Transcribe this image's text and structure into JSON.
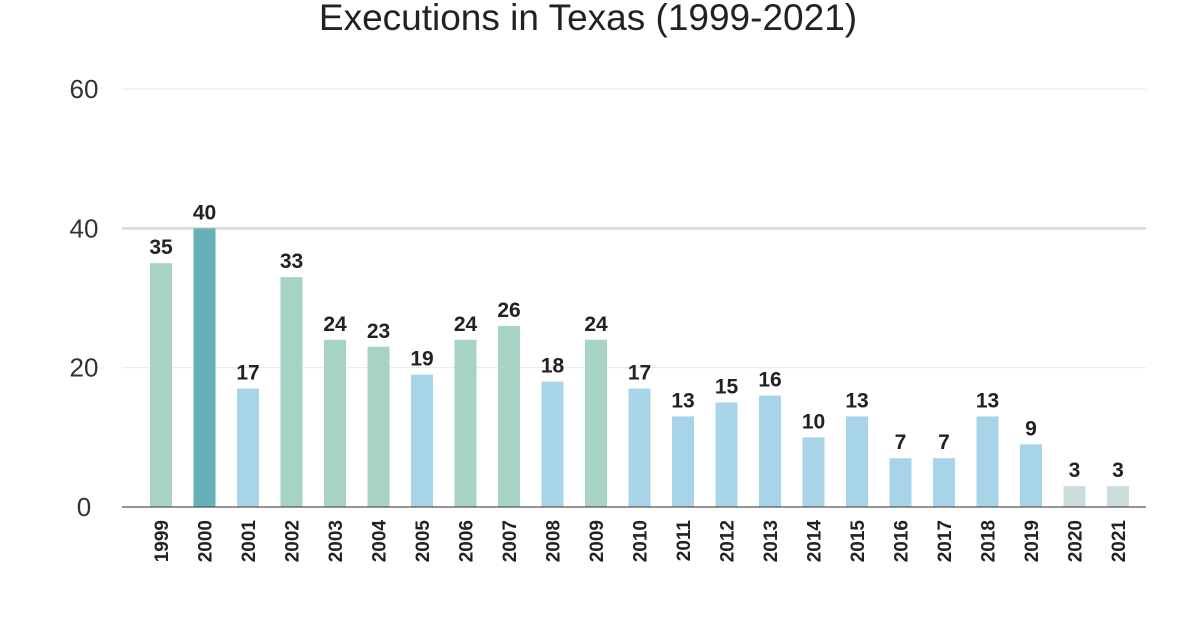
{
  "chart_data": {
    "type": "bar",
    "title": "Executions in Texas (1999-2021)",
    "xlabel": "",
    "ylabel": "",
    "ylim": [
      0,
      60
    ],
    "yticks": [
      0,
      20,
      40,
      60
    ],
    "grid": true,
    "legend": "none",
    "categories": [
      "1999",
      "2000",
      "2001",
      "2002",
      "2003",
      "2004",
      "2005",
      "2006",
      "2007",
      "2008",
      "2009",
      "2010",
      "2011",
      "2012",
      "2013",
      "2014",
      "2015",
      "2016",
      "2017",
      "2018",
      "2019",
      "2020",
      "2021"
    ],
    "values": [
      35,
      40,
      17,
      33,
      24,
      23,
      19,
      24,
      26,
      18,
      24,
      17,
      13,
      15,
      16,
      10,
      13,
      7,
      7,
      13,
      9,
      3,
      3
    ],
    "bar_color_groups": [
      "green",
      "teal",
      "blue",
      "green",
      "green",
      "green",
      "blue",
      "green",
      "green",
      "blue",
      "green",
      "blue",
      "blue",
      "blue",
      "blue",
      "blue",
      "blue",
      "blue",
      "blue",
      "blue",
      "blue",
      "grey",
      "grey"
    ],
    "colors": {
      "green": "#a6d3c6",
      "teal": "#66b1b9",
      "blue": "#a7d5e7",
      "grey": "#cbdcdd"
    }
  }
}
